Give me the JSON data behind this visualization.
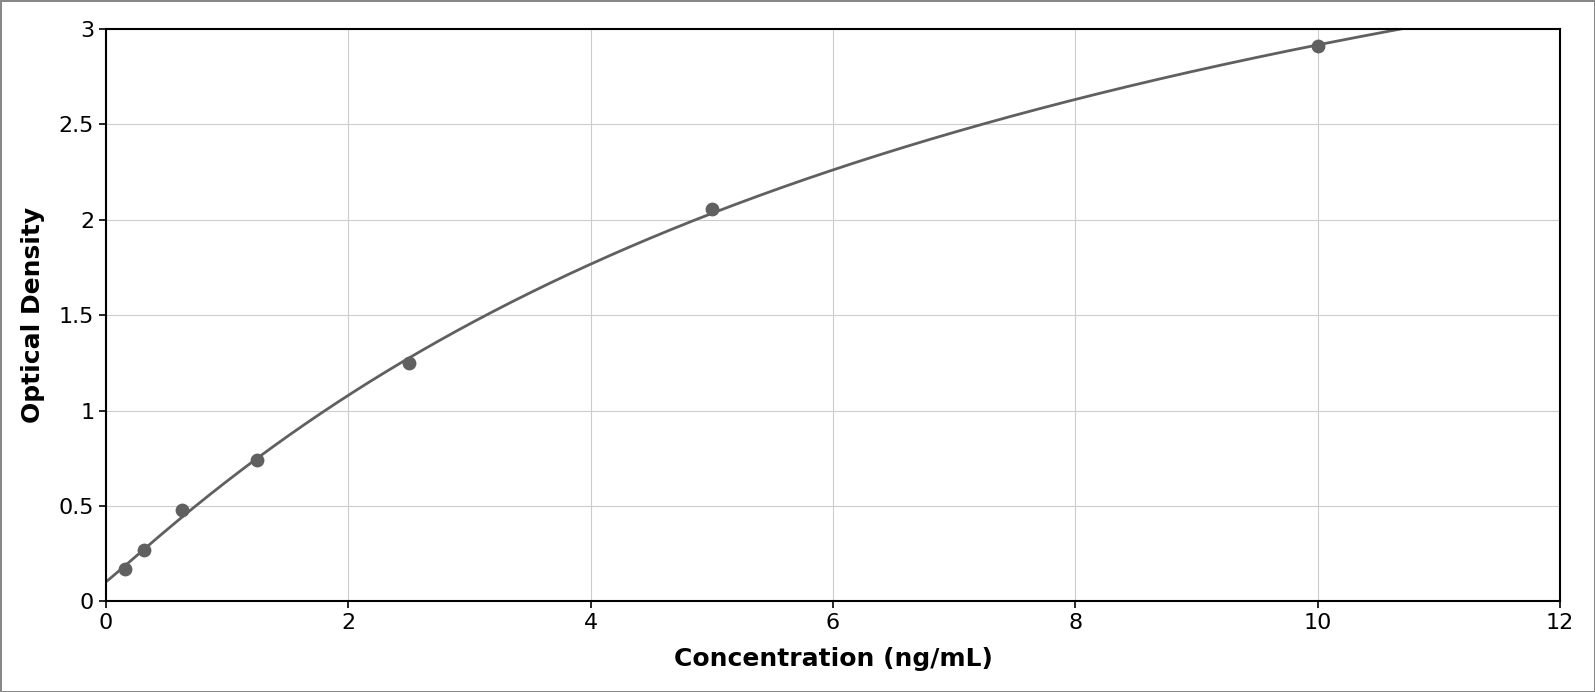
{
  "x_data": [
    0.156,
    0.313,
    0.625,
    1.25,
    2.5,
    5.0,
    10.0
  ],
  "y_data": [
    0.172,
    0.27,
    0.48,
    0.74,
    1.25,
    2.055,
    2.91
  ],
  "xlabel": "Concentration (ng/mL)",
  "ylabel": "Optical Density",
  "xlim": [
    0,
    12
  ],
  "ylim": [
    0,
    3
  ],
  "xticks": [
    0,
    2,
    4,
    6,
    8,
    10,
    12
  ],
  "yticks": [
    0,
    0.5,
    1.0,
    1.5,
    2.0,
    2.5,
    3.0
  ],
  "dot_color": "#606060",
  "line_color": "#606060",
  "background_color": "#ffffff",
  "plot_bg_color": "#ffffff",
  "grid_color": "#cccccc",
  "xlabel_fontsize": 18,
  "ylabel_fontsize": 18,
  "tick_fontsize": 16,
  "dot_size": 80,
  "line_width": 2.0,
  "figure_width": 15.95,
  "figure_height": 6.92,
  "border_color": "#000000"
}
